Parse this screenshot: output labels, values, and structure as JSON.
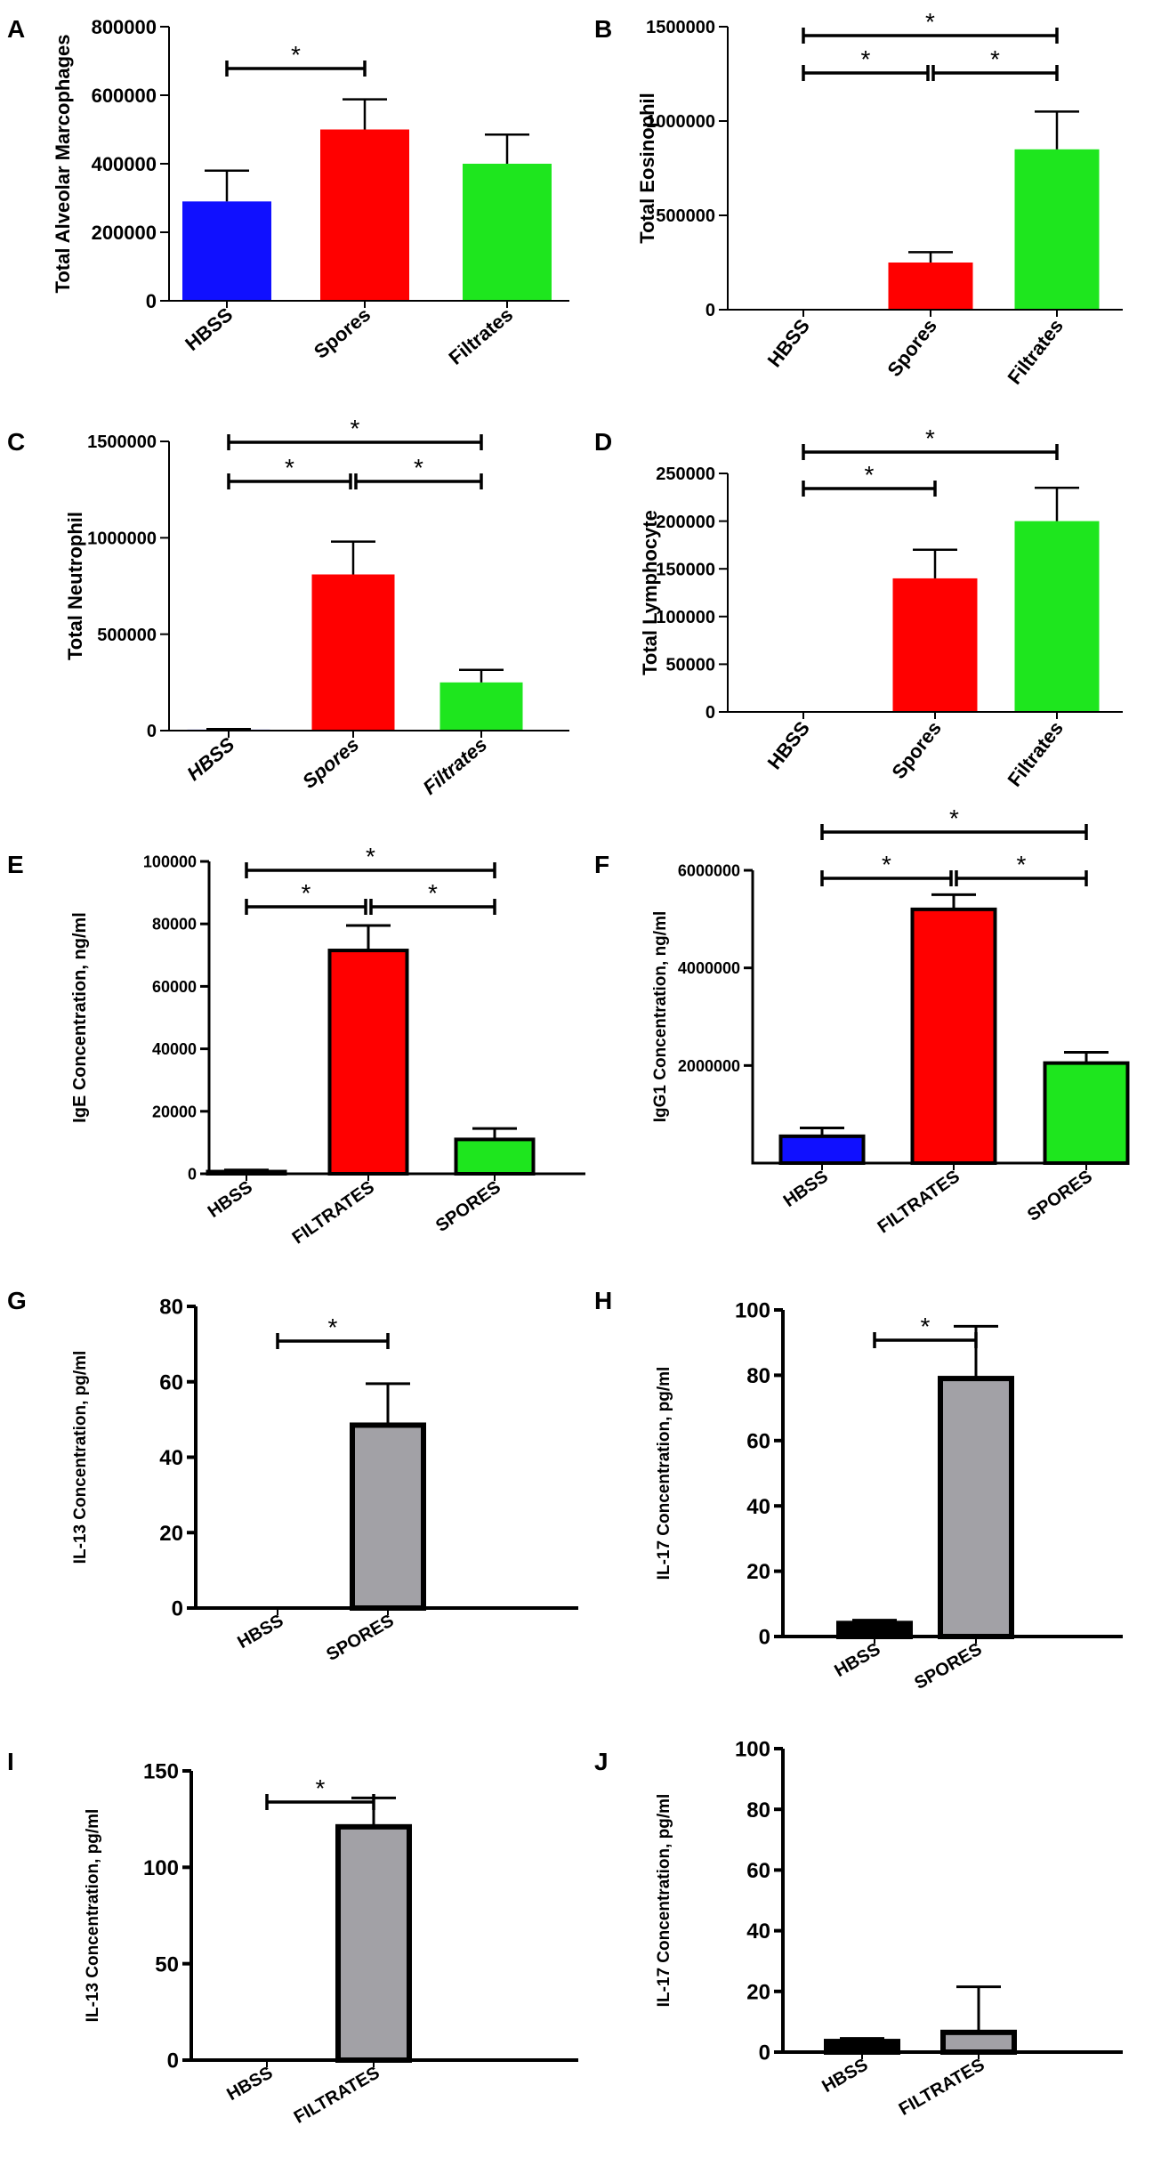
{
  "figure": {
    "panels": [
      "A",
      "B",
      "C",
      "D",
      "E",
      "F",
      "G",
      "H",
      "I",
      "J"
    ]
  },
  "chart_data": [
    {
      "panel": "A",
      "type": "bar",
      "title": "",
      "xlabel": "",
      "ylabel": "Total Alveolar Marcophages",
      "categories": [
        "HBSS",
        "Spores",
        "Filtrates"
      ],
      "values": [
        290000,
        500000,
        400000
      ],
      "errors": [
        90000,
        88000,
        85000
      ],
      "colors": [
        "#1010ff",
        "#ff0000",
        "#1ee61e"
      ],
      "ylim": [
        0,
        800000
      ],
      "yticks": [
        0,
        200000,
        400000,
        600000,
        800000
      ],
      "tick_labels": [
        "0",
        "200000",
        "400000",
        "600000",
        "800000"
      ],
      "significance": [
        {
          "from": 0,
          "to": 1,
          "label": "*"
        }
      ]
    },
    {
      "panel": "B",
      "type": "bar",
      "title": "",
      "xlabel": "",
      "ylabel": "Total Eosinophil",
      "categories": [
        "HBSS",
        "Spores",
        "Filtrates"
      ],
      "values": [
        0,
        250000,
        850000
      ],
      "errors": [
        0,
        55000,
        200000
      ],
      "colors": [
        "#1010ff",
        "#ff0000",
        "#1ee61e"
      ],
      "ylim": [
        0,
        1500000
      ],
      "yticks": [
        0,
        500000,
        1000000,
        1500000
      ],
      "tick_labels": [
        "0",
        "500000",
        "1000000",
        "1500000"
      ],
      "significance": [
        {
          "from": 0,
          "to": 2,
          "label": "*"
        },
        {
          "from": 0,
          "to": 1,
          "label": "*"
        },
        {
          "from": 1,
          "to": 2,
          "label": "*"
        }
      ]
    },
    {
      "panel": "C",
      "type": "bar",
      "title": "",
      "xlabel": "",
      "ylabel": "Total Neutrophil",
      "categories": [
        "HBSS",
        "Spores",
        "Filtrates"
      ],
      "values": [
        5000,
        810000,
        250000
      ],
      "errors": [
        3000,
        170000,
        65000
      ],
      "colors": [
        "#1010ff",
        "#ff0000",
        "#1ee61e"
      ],
      "ylim": [
        0,
        1500000
      ],
      "yticks": [
        0,
        500000,
        1000000,
        1500000
      ],
      "tick_labels": [
        "0",
        "500000",
        "1000000",
        "1500000"
      ],
      "italic_ticks": true,
      "significance": [
        {
          "from": 0,
          "to": 2,
          "label": "*"
        },
        {
          "from": 0,
          "to": 1,
          "label": "*"
        },
        {
          "from": 1,
          "to": 2,
          "label": "*"
        }
      ]
    },
    {
      "panel": "D",
      "type": "bar",
      "title": "",
      "xlabel": "",
      "ylabel": "Total Lymphocyte",
      "categories": [
        "HBSS",
        "Spores",
        "Filtrates"
      ],
      "values": [
        0,
        140000,
        200000
      ],
      "errors": [
        0,
        30000,
        35000
      ],
      "colors": [
        "#1010ff",
        "#ff0000",
        "#1ee61e"
      ],
      "ylim": [
        0,
        250000
      ],
      "yticks": [
        0,
        50000,
        100000,
        150000,
        200000,
        250000
      ],
      "tick_labels": [
        "0",
        "50000",
        "100000",
        "150000",
        "200000",
        "250000"
      ],
      "significance": [
        {
          "from": 0,
          "to": 2,
          "label": "*"
        },
        {
          "from": 0,
          "to": 1,
          "label": "*"
        }
      ]
    },
    {
      "panel": "E",
      "type": "bar",
      "title": "",
      "xlabel": "",
      "ylabel": "IgE Concentration, ng/ml",
      "categories": [
        "HBSS",
        "FILTRATES",
        "SPORES"
      ],
      "values": [
        700,
        71500,
        11000
      ],
      "errors": [
        500,
        8000,
        3500
      ],
      "colors": [
        "#1010ff",
        "#ff0000",
        "#1ee61e"
      ],
      "ylim": [
        0,
        100000
      ],
      "yticks": [
        0,
        20000,
        40000,
        60000,
        80000,
        100000
      ],
      "tick_labels": [
        "0",
        "20000",
        "40000",
        "60000",
        "80000",
        "100000"
      ],
      "significance": [
        {
          "from": 0,
          "to": 2,
          "label": "*"
        },
        {
          "from": 0,
          "to": 1,
          "label": "*"
        },
        {
          "from": 1,
          "to": 2,
          "label": "*"
        }
      ]
    },
    {
      "panel": "F",
      "type": "bar",
      "title": "",
      "xlabel": "",
      "ylabel": "IgG1 Concentration, ng/ml",
      "categories": [
        "HBSS",
        "FILTRATES",
        "SPORES"
      ],
      "values": [
        550000,
        5200000,
        2050000
      ],
      "errors": [
        170000,
        300000,
        220000
      ],
      "colors": [
        "#1010ff",
        "#ff0000",
        "#1ee61e"
      ],
      "ylim": [
        0,
        6000000
      ],
      "yticks": [
        2000000,
        4000000,
        6000000
      ],
      "tick_labels": [
        "2000000",
        "4000000",
        "6000000"
      ],
      "significance": [
        {
          "from": 0,
          "to": 2,
          "label": "*"
        },
        {
          "from": 0,
          "to": 1,
          "label": "*"
        },
        {
          "from": 1,
          "to": 2,
          "label": "*"
        }
      ]
    },
    {
      "panel": "G",
      "type": "bar",
      "title": "",
      "xlabel": "",
      "ylabel": "IL-13 Concentration, pg/ml",
      "categories": [
        "HBSS",
        "SPORES"
      ],
      "values": [
        0,
        48.5
      ],
      "errors": [
        0,
        11
      ],
      "colors": [
        "#000000",
        "#a2a1a6"
      ],
      "ylim": [
        0,
        80
      ],
      "yticks": [
        0,
        20,
        40,
        60,
        80
      ],
      "tick_labels": [
        "0",
        "20",
        "40",
        "60",
        "80"
      ],
      "significance": [
        {
          "from": 0,
          "to": 1,
          "label": "*"
        }
      ]
    },
    {
      "panel": "H",
      "type": "bar",
      "title": "",
      "xlabel": "",
      "ylabel": "IL-17 Concentration, pg/ml",
      "categories": [
        "HBSS",
        "SPORES"
      ],
      "values": [
        4,
        79
      ],
      "errors": [
        1,
        16
      ],
      "colors": [
        "#000000",
        "#a2a1a6"
      ],
      "ylim": [
        0,
        100
      ],
      "yticks": [
        0,
        20,
        40,
        60,
        80,
        100
      ],
      "tick_labels": [
        "0",
        "20",
        "40",
        "60",
        "80",
        "100"
      ],
      "significance": [
        {
          "from": 0,
          "to": 1,
          "label": "*"
        }
      ]
    },
    {
      "panel": "I",
      "type": "bar",
      "title": "",
      "xlabel": "",
      "ylabel": "IL-13 Concentration, pg/ml",
      "categories": [
        "HBSS",
        "FILTRATES"
      ],
      "values": [
        0,
        121
      ],
      "errors": [
        0,
        15
      ],
      "colors": [
        "#000000",
        "#a2a1a6"
      ],
      "ylim": [
        0,
        150
      ],
      "yticks": [
        0,
        50,
        100,
        150
      ],
      "tick_labels": [
        "0",
        "50",
        "100",
        "150"
      ],
      "significance": [
        {
          "from": 0,
          "to": 1,
          "label": "*"
        }
      ]
    },
    {
      "panel": "J",
      "type": "bar",
      "title": "",
      "xlabel": "",
      "ylabel": "IL-17 Concentration, pg/ml",
      "categories": [
        "HBSS",
        "FILTRATES"
      ],
      "values": [
        3.5,
        6.5
      ],
      "errors": [
        1,
        15
      ],
      "colors": [
        "#000000",
        "#a2a1a6"
      ],
      "ylim": [
        0,
        100
      ],
      "yticks": [
        0,
        20,
        40,
        60,
        80,
        100
      ],
      "tick_labels": [
        "0",
        "20",
        "40",
        "60",
        "80",
        "100"
      ],
      "significance": []
    }
  ]
}
